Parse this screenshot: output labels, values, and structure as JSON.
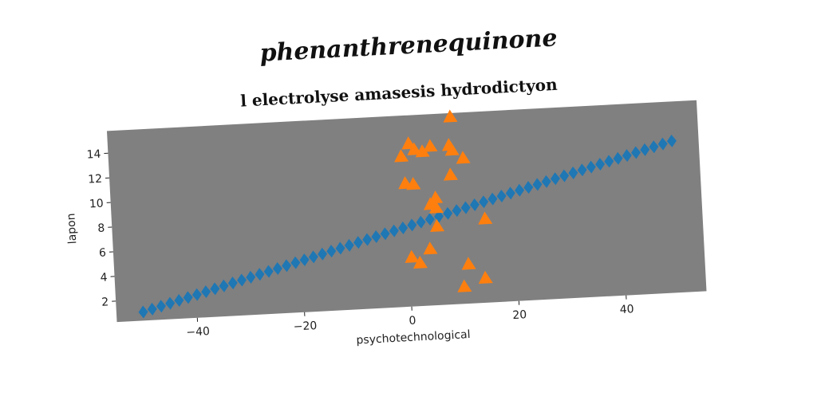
{
  "figure": {
    "suptitle": "phenanthrenequinone"
  },
  "chart_data": {
    "type": "scatter",
    "title": "l electrolyse amasesis hydrodictyon",
    "xlabel": "psychotechnological",
    "ylabel": "lapon",
    "xlim": [
      -55,
      55
    ],
    "ylim": [
      0.3,
      15.8
    ],
    "xticks": [
      -40,
      -20,
      0,
      20,
      40
    ],
    "xtick_labels": [
      "−40",
      "−20",
      "0",
      "20",
      "40"
    ],
    "yticks": [
      2,
      4,
      6,
      8,
      10,
      12,
      14
    ],
    "ytick_labels": [
      "2",
      "4",
      "6",
      "8",
      "10",
      "12",
      "14"
    ],
    "grid": false,
    "legend": "none",
    "background": "#808080",
    "series": [
      {
        "marker": "diamond",
        "color": "#1f77b4",
        "line": {
          "x_start": -50,
          "x_end": 50,
          "count": 60,
          "y_start": 1.0,
          "y_end": 12.6
        }
      },
      {
        "marker": "triangle",
        "color": "#ff7f0e",
        "points": [
          [
            9,
            15.5
          ],
          [
            1,
            13.5
          ],
          [
            -0.5,
            12.5
          ],
          [
            2,
            13
          ],
          [
            3.5,
            12.8
          ],
          [
            5,
            13.2
          ],
          [
            8.5,
            13.2
          ],
          [
            9,
            12.8
          ],
          [
            11,
            12.1
          ],
          [
            8.5,
            10.8
          ],
          [
            0,
            10.3
          ],
          [
            1.5,
            10.2
          ],
          [
            5.5,
            9
          ],
          [
            4.5,
            8.5
          ],
          [
            5.5,
            8.2
          ],
          [
            14.5,
            7.1
          ],
          [
            5.5,
            6.7
          ],
          [
            4,
            4.9
          ],
          [
            0.5,
            4.3
          ],
          [
            2,
            3.8
          ],
          [
            11,
            3.5
          ],
          [
            14,
            2.3
          ],
          [
            10,
            1.7
          ]
        ]
      }
    ]
  }
}
